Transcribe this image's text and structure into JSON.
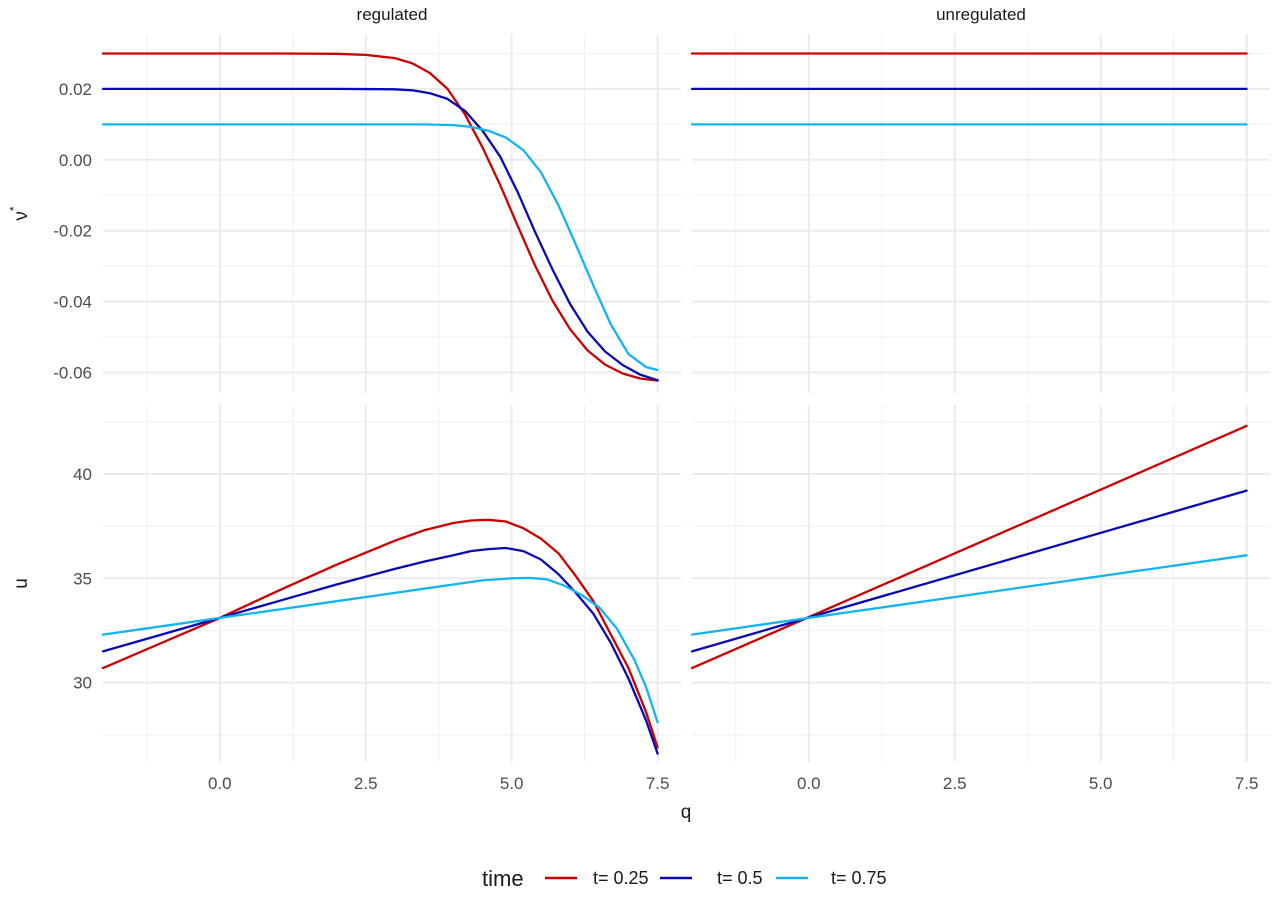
{
  "chart_data": {
    "type": "line",
    "xlabel": "q",
    "facet_columns": [
      "regulated",
      "unregulated"
    ],
    "x_ticks": [
      "0.0",
      "2.5",
      "5.0",
      "7.5"
    ],
    "x_tick_values": [
      0,
      2.5,
      5,
      7.5
    ],
    "xlim": [
      -2.0,
      7.9
    ],
    "legend": {
      "title": "time",
      "position": "bottom",
      "entries": [
        {
          "label": "t= 0.25",
          "color": "#cc0000"
        },
        {
          "label": "t= 0.5",
          "color": "#0a0ab4"
        },
        {
          "label": "t= 0.75",
          "color": "#14b4f0"
        }
      ]
    },
    "rows": [
      {
        "ylabel": "ν*",
        "ylabel_main": "ν",
        "ylabel_sup": "*",
        "ylim": [
          -0.0658,
          0.0355
        ],
        "y_ticks": [
          "0.02",
          "0.00",
          "-0.02",
          "-0.04",
          "-0.06"
        ],
        "y_tick_values": [
          0.02,
          0.0,
          -0.02,
          -0.04,
          -0.06
        ],
        "y_minor_values": [
          0.03,
          0.01,
          -0.01,
          -0.03,
          -0.05
        ],
        "panels": [
          {
            "facet": "regulated",
            "series": [
              {
                "name": "t= 0.25",
                "color": "#cc0000",
                "x": [
                  -2,
                  -1,
                  0,
                  1,
                  2,
                  2.5,
                  3,
                  3.3,
                  3.6,
                  3.9,
                  4.2,
                  4.5,
                  4.8,
                  5.1,
                  5.4,
                  5.7,
                  6.0,
                  6.3,
                  6.6,
                  6.9,
                  7.2,
                  7.5
                ],
                "y": [
                  0.03,
                  0.03,
                  0.03,
                  0.03,
                  0.0299,
                  0.0296,
                  0.0287,
                  0.0272,
                  0.0245,
                  0.02,
                  0.0128,
                  0.0035,
                  -0.007,
                  -0.0185,
                  -0.0298,
                  -0.0398,
                  -0.0478,
                  -0.0538,
                  -0.0578,
                  -0.0603,
                  -0.0617,
                  -0.0623
                ]
              },
              {
                "name": "t= 0.5",
                "color": "#0a0ab4",
                "x": [
                  -2,
                  -1,
                  0,
                  1,
                  2,
                  3,
                  3.3,
                  3.6,
                  3.9,
                  4.2,
                  4.5,
                  4.8,
                  5.1,
                  5.4,
                  5.7,
                  6.0,
                  6.3,
                  6.6,
                  6.9,
                  7.2,
                  7.5
                ],
                "y": [
                  0.02,
                  0.02,
                  0.02,
                  0.02,
                  0.02,
                  0.0199,
                  0.0196,
                  0.0188,
                  0.0172,
                  0.0138,
                  0.0082,
                  0.001,
                  -0.009,
                  -0.0203,
                  -0.031,
                  -0.0407,
                  -0.0485,
                  -0.0541,
                  -0.0579,
                  -0.0606,
                  -0.0622
                ]
              },
              {
                "name": "t= 0.75",
                "color": "#14b4f0",
                "x": [
                  -2,
                  -1,
                  0,
                  1,
                  2,
                  3,
                  3.5,
                  4.0,
                  4.3,
                  4.6,
                  4.9,
                  5.2,
                  5.5,
                  5.8,
                  6.1,
                  6.4,
                  6.7,
                  7.0,
                  7.3,
                  7.5
                ],
                "y": [
                  0.01,
                  0.01,
                  0.01,
                  0.01,
                  0.01,
                  0.01,
                  0.01,
                  0.0098,
                  0.0093,
                  0.0082,
                  0.0063,
                  0.0027,
                  -0.0035,
                  -0.0128,
                  -0.024,
                  -0.0355,
                  -0.0465,
                  -0.0548,
                  -0.0585,
                  -0.0593
                ]
              }
            ]
          },
          {
            "facet": "unregulated",
            "series": [
              {
                "name": "t= 0.25",
                "color": "#cc0000",
                "x": [
                  -2,
                  7.5
                ],
                "y": [
                  0.03,
                  0.03
                ]
              },
              {
                "name": "t= 0.5",
                "color": "#0a0ab4",
                "x": [
                  -2,
                  7.5
                ],
                "y": [
                  0.02,
                  0.02
                ]
              },
              {
                "name": "t= 0.75",
                "color": "#14b4f0",
                "x": [
                  -2,
                  7.5
                ],
                "y": [
                  0.01,
                  0.01
                ]
              }
            ]
          }
        ]
      },
      {
        "ylabel": "u",
        "ylabel_main": "u",
        "ylabel_sup": "",
        "ylim": [
          26.2,
          43.3
        ],
        "y_ticks": [
          "40",
          "35",
          "30"
        ],
        "y_tick_values": [
          40,
          35,
          30
        ],
        "y_minor_values": [
          42.5,
          37.5,
          32.5,
          27.5
        ],
        "panels": [
          {
            "facet": "regulated",
            "series": [
              {
                "name": "t= 0.25",
                "color": "#cc0000",
                "x": [
                  -2,
                  -1,
                  0,
                  1,
                  2,
                  3,
                  3.5,
                  4.0,
                  4.3,
                  4.6,
                  4.9,
                  5.2,
                  5.5,
                  5.8,
                  6.1,
                  6.4,
                  6.7,
                  7.0,
                  7.3,
                  7.5
                ],
                "y": [
                  30.7,
                  31.9,
                  33.1,
                  34.4,
                  35.65,
                  36.8,
                  37.3,
                  37.65,
                  37.77,
                  37.8,
                  37.72,
                  37.4,
                  36.9,
                  36.2,
                  35.1,
                  33.9,
                  32.3,
                  30.7,
                  28.6,
                  26.9
                ]
              },
              {
                "name": "t= 0.5",
                "color": "#0a0ab4",
                "x": [
                  -2,
                  -1,
                  0,
                  1,
                  2,
                  3,
                  3.5,
                  4.0,
                  4.3,
                  4.6,
                  4.9,
                  5.2,
                  5.5,
                  5.8,
                  6.1,
                  6.4,
                  6.7,
                  7.0,
                  7.3,
                  7.5
                ],
                "y": [
                  31.5,
                  32.3,
                  33.1,
                  33.9,
                  34.7,
                  35.45,
                  35.8,
                  36.1,
                  36.3,
                  36.4,
                  36.45,
                  36.3,
                  35.9,
                  35.2,
                  34.3,
                  33.3,
                  31.9,
                  30.2,
                  28.2,
                  26.6
                ]
              },
              {
                "name": "t= 0.75",
                "color": "#14b4f0",
                "x": [
                  -2,
                  -1,
                  0,
                  1,
                  2,
                  3,
                  3.5,
                  4.0,
                  4.5,
                  5.0,
                  5.3,
                  5.6,
                  5.9,
                  6.2,
                  6.5,
                  6.8,
                  7.1,
                  7.3,
                  7.5
                ],
                "y": [
                  32.3,
                  32.7,
                  33.1,
                  33.5,
                  33.9,
                  34.3,
                  34.5,
                  34.7,
                  34.9,
                  35.0,
                  35.02,
                  34.95,
                  34.65,
                  34.2,
                  33.6,
                  32.6,
                  31.1,
                  29.8,
                  28.1
                ]
              }
            ]
          },
          {
            "facet": "unregulated",
            "series": [
              {
                "name": "t= 0.25",
                "color": "#cc0000",
                "x": [
                  -2,
                  7.5
                ],
                "y": [
                  30.7,
                  42.3
                ]
              },
              {
                "name": "t= 0.5",
                "color": "#0a0ab4",
                "x": [
                  -2,
                  7.5
                ],
                "y": [
                  31.5,
                  39.2
                ]
              },
              {
                "name": "t= 0.75",
                "color": "#14b4f0",
                "x": [
                  -2,
                  7.5
                ],
                "y": [
                  32.3,
                  36.1
                ]
              }
            ]
          }
        ]
      }
    ]
  }
}
